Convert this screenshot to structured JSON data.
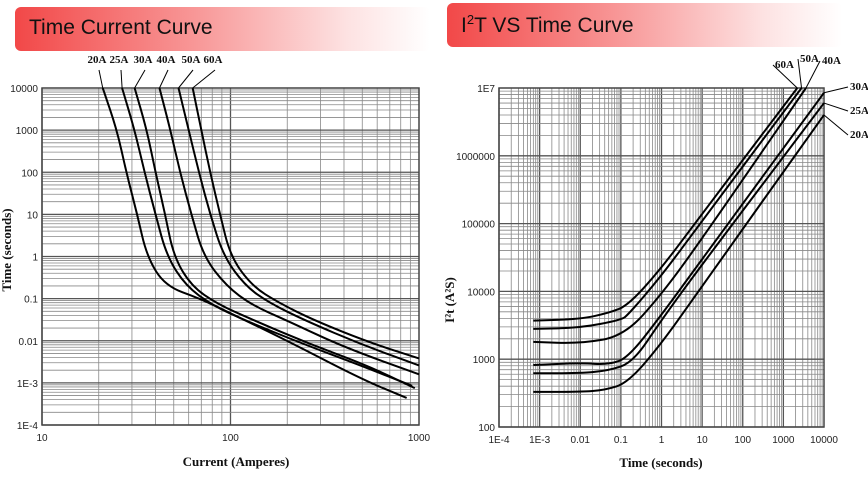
{
  "panels": {
    "left_title": "Time Current Curve",
    "right_title_base": "I",
    "right_title_sup": "2",
    "right_title_rest": "T VS Time Curve"
  },
  "chart_data": [
    {
      "type": "line",
      "title": "Time Current Curve",
      "xlabel": "Current (Amperes)",
      "ylabel": "Time (seconds)",
      "xscale": "log",
      "yscale": "log",
      "xlim": [
        10,
        1000
      ],
      "ylim": [
        0.0001,
        10000
      ],
      "xticks": [
        "10",
        "100",
        "1000"
      ],
      "yticks": [
        "10000",
        "1000",
        "100",
        "10",
        "1",
        "0.1",
        "0.01",
        "1E-3",
        "1E-4"
      ],
      "grid": true,
      "line_color": "#000000",
      "series": [
        {
          "name": "20A",
          "points": [
            [
              21,
              10000
            ],
            [
              25,
              1000
            ],
            [
              28,
              100
            ],
            [
              32,
              10
            ],
            [
              36,
              1
            ],
            [
              45,
              0.2
            ],
            [
              69,
              0.1
            ],
            [
              100,
              0.045
            ],
            [
              200,
              0.01
            ],
            [
              500,
              0.0012
            ],
            [
              860,
              0.00044
            ]
          ]
        },
        {
          "name": "25A",
          "points": [
            [
              26.6,
              10000
            ],
            [
              31,
              1000
            ],
            [
              35,
              100
            ],
            [
              40,
              10
            ],
            [
              46,
              1
            ],
            [
              58,
              0.2
            ],
            [
              80,
              0.07
            ],
            [
              120,
              0.03
            ],
            [
              250,
              0.008
            ],
            [
              500,
              0.0025
            ],
            [
              920,
              0.00085
            ]
          ]
        },
        {
          "name": "30A",
          "points": [
            [
              31,
              10000
            ],
            [
              36,
              1000
            ],
            [
              40,
              100
            ],
            [
              45,
              10
            ],
            [
              50,
              1
            ],
            [
              62,
              0.2
            ],
            [
              85,
              0.075
            ],
            [
              130,
              0.032
            ],
            [
              260,
              0.0085
            ],
            [
              520,
              0.0027
            ],
            [
              950,
              0.00075
            ]
          ]
        },
        {
          "name": "40A",
          "points": [
            [
              42,
              10000
            ],
            [
              48,
              1000
            ],
            [
              54,
              100
            ],
            [
              62,
              10
            ],
            [
              72,
              1
            ],
            [
              95,
              0.2
            ],
            [
              130,
              0.07
            ],
            [
              200,
              0.03
            ],
            [
              400,
              0.007
            ],
            [
              1000,
              0.0016
            ]
          ]
        },
        {
          "name": "50A",
          "points": [
            [
              53,
              10000
            ],
            [
              60,
              1000
            ],
            [
              68,
              100
            ],
            [
              78,
              10
            ],
            [
              92,
              1
            ],
            [
              120,
              0.2
            ],
            [
              160,
              0.08
            ],
            [
              250,
              0.03
            ],
            [
              500,
              0.008
            ],
            [
              1000,
              0.0026
            ]
          ]
        },
        {
          "name": "60A",
          "points": [
            [
              63,
              10000
            ],
            [
              70,
              1000
            ],
            [
              78,
              100
            ],
            [
              88,
              10
            ],
            [
              100,
              1
            ],
            [
              130,
              0.2
            ],
            [
              180,
              0.08
            ],
            [
              280,
              0.03
            ],
            [
              550,
              0.009
            ],
            [
              1000,
              0.0038
            ]
          ]
        }
      ]
    },
    {
      "type": "line",
      "title": "I2T VS Time Curve",
      "xlabel": "Time (seconds)",
      "ylabel": "I²t  (A²S)",
      "xscale": "log",
      "yscale": "log",
      "xlim": [
        0.0001,
        10000
      ],
      "ylim": [
        100,
        10000000
      ],
      "xticks": [
        "1E-4",
        "1E-3",
        "0.01",
        "0.1",
        "1",
        "10",
        "100",
        "1000",
        "10000"
      ],
      "yticks": [
        "1E7",
        "1000000",
        "100000",
        "10000",
        "1000",
        "100"
      ],
      "grid": true,
      "line_color": "#000000",
      "series": [
        {
          "name": "60A",
          "points": [
            [
              0.0007,
              3700
            ],
            [
              0.01,
              3900
            ],
            [
              0.05,
              4800
            ],
            [
              0.15,
              6200
            ],
            [
              1,
              22000
            ],
            [
              10,
              140000
            ],
            [
              2200,
              10000000
            ]
          ]
        },
        {
          "name": "50A",
          "points": [
            [
              0.0007,
              2800
            ],
            [
              0.01,
              2900
            ],
            [
              0.1,
              3800
            ],
            [
              0.15,
              4500
            ],
            [
              1,
              17000
            ],
            [
              10,
              110000
            ],
            [
              2800,
              10000000
            ]
          ]
        },
        {
          "name": "40A",
          "points": [
            [
              0.0007,
              1800
            ],
            [
              0.01,
              1700
            ],
            [
              0.12,
              2200
            ],
            [
              1,
              9000
            ],
            [
              10,
              60000
            ],
            [
              3600,
              10000000
            ]
          ]
        },
        {
          "name": "30A",
          "points": [
            [
              0.0007,
              820
            ],
            [
              0.01,
              880
            ],
            [
              0.05,
              830
            ],
            [
              0.15,
              1050
            ],
            [
              1,
              4500
            ],
            [
              10,
              30000
            ],
            [
              10000,
              8500000
            ]
          ]
        },
        {
          "name": "25A",
          "points": [
            [
              0.0007,
              620
            ],
            [
              0.01,
              620
            ],
            [
              0.05,
              680
            ],
            [
              0.2,
              900
            ],
            [
              1,
              3800
            ],
            [
              10,
              25000
            ],
            [
              10000,
              6000000
            ]
          ]
        },
        {
          "name": "20A",
          "points": [
            [
              0.0007,
              330
            ],
            [
              0.01,
              330
            ],
            [
              0.04,
              350
            ],
            [
              0.15,
              450
            ],
            [
              1,
              1700
            ],
            [
              10,
              12000
            ],
            [
              10000,
              4000000
            ]
          ]
        }
      ]
    }
  ]
}
